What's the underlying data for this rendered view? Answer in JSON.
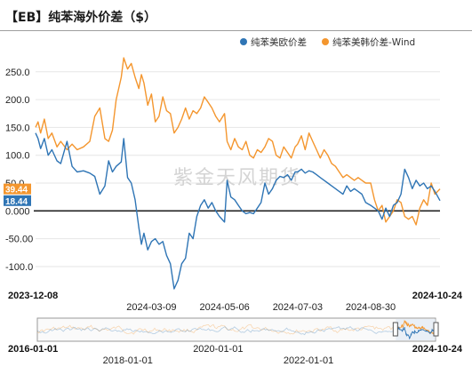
{
  "title": "【EB】纯苯海外价差（$）",
  "watermark": "紫金天风期货",
  "colors": {
    "eu": "#2f75b5",
    "kr": "#f4962e",
    "zero": "#222222",
    "grid": "#e6e6e6"
  },
  "chart_data": {
    "type": "line",
    "legend_position": "top-right",
    "ylim": [
      -140,
      280
    ],
    "yticks": [
      "250.0",
      "200.0",
      "150.0",
      "100.0",
      "50.0",
      "0.000",
      "-50.00",
      "-100.0"
    ],
    "x_start": "2023-12-08",
    "x_end": "2024-10-24",
    "x_ticks_bottom": [
      "2023-12-08",
      "2024-10-24"
    ],
    "x_ticks_top": [
      "2024-03-09",
      "2024-05-06",
      "2024-07-03",
      "2024-08-30"
    ],
    "last_values": {
      "kr": "39.44",
      "eu": "18.44"
    },
    "series": [
      {
        "name": "纯苯美欧价差",
        "key": "eu",
        "points": [
          [
            "2023-12-08",
            140
          ],
          [
            "2023-12-10",
            130
          ],
          [
            "2023-12-12",
            112
          ],
          [
            "2023-12-15",
            130
          ],
          [
            "2023-12-18",
            100
          ],
          [
            "2023-12-21",
            110
          ],
          [
            "2023-12-25",
            90
          ],
          [
            "2023-12-28",
            85
          ],
          [
            "2024-01-02",
            125
          ],
          [
            "2024-01-06",
            80
          ],
          [
            "2024-01-10",
            70
          ],
          [
            "2024-01-15",
            72
          ],
          [
            "2024-01-20",
            68
          ],
          [
            "2024-01-24",
            62
          ],
          [
            "2024-01-28",
            30
          ],
          [
            "2024-02-01",
            45
          ],
          [
            "2024-02-04",
            90
          ],
          [
            "2024-02-07",
            70
          ],
          [
            "2024-02-10",
            80
          ],
          [
            "2024-02-14",
            88
          ],
          [
            "2024-02-16",
            130
          ],
          [
            "2024-02-19",
            60
          ],
          [
            "2024-02-22",
            50
          ],
          [
            "2024-02-25",
            20
          ],
          [
            "2024-02-28",
            -30
          ],
          [
            "2024-03-01",
            -60
          ],
          [
            "2024-03-03",
            -40
          ],
          [
            "2024-03-06",
            -70
          ],
          [
            "2024-03-09",
            -55
          ],
          [
            "2024-03-12",
            -50
          ],
          [
            "2024-03-15",
            -60
          ],
          [
            "2024-03-18",
            -55
          ],
          [
            "2024-03-21",
            -80
          ],
          [
            "2024-03-24",
            -95
          ],
          [
            "2024-03-27",
            -140
          ],
          [
            "2024-03-30",
            -125
          ],
          [
            "2024-04-02",
            -95
          ],
          [
            "2024-04-05",
            -85
          ],
          [
            "2024-04-08",
            -40
          ],
          [
            "2024-04-11",
            -50
          ],
          [
            "2024-04-14",
            -10
          ],
          [
            "2024-04-17",
            10
          ],
          [
            "2024-04-20",
            20
          ],
          [
            "2024-04-23",
            5
          ],
          [
            "2024-04-26",
            15
          ],
          [
            "2024-04-29",
            0
          ],
          [
            "2024-05-02",
            -10
          ],
          [
            "2024-05-06",
            -20
          ],
          [
            "2024-05-08",
            55
          ],
          [
            "2024-05-11",
            25
          ],
          [
            "2024-05-14",
            20
          ],
          [
            "2024-05-17",
            10
          ],
          [
            "2024-05-20",
            0
          ],
          [
            "2024-05-23",
            -5
          ],
          [
            "2024-05-26",
            -3
          ],
          [
            "2024-05-29",
            -5
          ],
          [
            "2024-06-01",
            5
          ],
          [
            "2024-06-04",
            15
          ],
          [
            "2024-06-07",
            50
          ],
          [
            "2024-06-10",
            30
          ],
          [
            "2024-06-13",
            40
          ],
          [
            "2024-06-16",
            55
          ],
          [
            "2024-06-19",
            62
          ],
          [
            "2024-06-22",
            60
          ],
          [
            "2024-06-25",
            65
          ],
          [
            "2024-06-28",
            55
          ],
          [
            "2024-07-01",
            70
          ],
          [
            "2024-07-03",
            70
          ],
          [
            "2024-07-06",
            75
          ],
          [
            "2024-07-09",
            68
          ],
          [
            "2024-07-12",
            72
          ],
          [
            "2024-07-15",
            70
          ],
          [
            "2024-07-18",
            65
          ],
          [
            "2024-07-21",
            60
          ],
          [
            "2024-07-24",
            55
          ],
          [
            "2024-07-27",
            50
          ],
          [
            "2024-07-30",
            45
          ],
          [
            "2024-08-02",
            40
          ],
          [
            "2024-08-05",
            35
          ],
          [
            "2024-08-08",
            30
          ],
          [
            "2024-08-11",
            45
          ],
          [
            "2024-08-14",
            35
          ],
          [
            "2024-08-17",
            40
          ],
          [
            "2024-08-20",
            35
          ],
          [
            "2024-08-23",
            30
          ],
          [
            "2024-08-26",
            15
          ],
          [
            "2024-08-30",
            10
          ],
          [
            "2024-09-02",
            5
          ],
          [
            "2024-09-05",
            0
          ],
          [
            "2024-09-08",
            -15
          ],
          [
            "2024-09-11",
            5
          ],
          [
            "2024-09-14",
            -10
          ],
          [
            "2024-09-17",
            10
          ],
          [
            "2024-09-20",
            15
          ],
          [
            "2024-09-23",
            30
          ],
          [
            "2024-09-26",
            75
          ],
          [
            "2024-09-29",
            60
          ],
          [
            "2024-10-02",
            40
          ],
          [
            "2024-10-05",
            55
          ],
          [
            "2024-10-08",
            45
          ],
          [
            "2024-10-11",
            50
          ],
          [
            "2024-10-14",
            40
          ],
          [
            "2024-10-17",
            45
          ],
          [
            "2024-10-20",
            35
          ],
          [
            "2024-10-24",
            18.44
          ]
        ]
      },
      {
        "name": "纯苯美韩价差-Wind",
        "key": "kr",
        "points": [
          [
            "2023-12-08",
            150
          ],
          [
            "2023-12-10",
            160
          ],
          [
            "2023-12-12",
            140
          ],
          [
            "2023-12-15",
            165
          ],
          [
            "2023-12-18",
            130
          ],
          [
            "2023-12-21",
            140
          ],
          [
            "2023-12-25",
            115
          ],
          [
            "2023-12-28",
            125
          ],
          [
            "2024-01-02",
            110
          ],
          [
            "2024-01-06",
            120
          ],
          [
            "2024-01-10",
            110
          ],
          [
            "2024-01-15",
            115
          ],
          [
            "2024-01-20",
            125
          ],
          [
            "2024-01-24",
            170
          ],
          [
            "2024-01-28",
            185
          ],
          [
            "2024-02-01",
            130
          ],
          [
            "2024-02-04",
            125
          ],
          [
            "2024-02-07",
            145
          ],
          [
            "2024-02-10",
            200
          ],
          [
            "2024-02-14",
            240
          ],
          [
            "2024-02-16",
            275
          ],
          [
            "2024-02-19",
            255
          ],
          [
            "2024-02-22",
            265
          ],
          [
            "2024-02-25",
            240
          ],
          [
            "2024-02-28",
            220
          ],
          [
            "2024-03-01",
            245
          ],
          [
            "2024-03-03",
            230
          ],
          [
            "2024-03-06",
            190
          ],
          [
            "2024-03-09",
            210
          ],
          [
            "2024-03-12",
            160
          ],
          [
            "2024-03-15",
            170
          ],
          [
            "2024-03-18",
            205
          ],
          [
            "2024-03-21",
            180
          ],
          [
            "2024-03-24",
            175
          ],
          [
            "2024-03-27",
            140
          ],
          [
            "2024-03-30",
            150
          ],
          [
            "2024-04-02",
            165
          ],
          [
            "2024-04-05",
            185
          ],
          [
            "2024-04-08",
            165
          ],
          [
            "2024-04-11",
            180
          ],
          [
            "2024-04-14",
            175
          ],
          [
            "2024-04-17",
            185
          ],
          [
            "2024-04-20",
            205
          ],
          [
            "2024-04-23",
            195
          ],
          [
            "2024-04-26",
            185
          ],
          [
            "2024-04-29",
            170
          ],
          [
            "2024-05-02",
            160
          ],
          [
            "2024-05-06",
            175
          ],
          [
            "2024-05-08",
            125
          ],
          [
            "2024-05-11",
            110
          ],
          [
            "2024-05-14",
            130
          ],
          [
            "2024-05-17",
            115
          ],
          [
            "2024-05-20",
            110
          ],
          [
            "2024-05-23",
            125
          ],
          [
            "2024-05-26",
            100
          ],
          [
            "2024-05-29",
            95
          ],
          [
            "2024-06-01",
            110
          ],
          [
            "2024-06-04",
            105
          ],
          [
            "2024-06-07",
            115
          ],
          [
            "2024-06-10",
            130
          ],
          [
            "2024-06-13",
            125
          ],
          [
            "2024-06-16",
            100
          ],
          [
            "2024-06-19",
            95
          ],
          [
            "2024-06-22",
            115
          ],
          [
            "2024-06-25",
            105
          ],
          [
            "2024-06-28",
            95
          ],
          [
            "2024-07-01",
            115
          ],
          [
            "2024-07-03",
            120
          ],
          [
            "2024-07-06",
            135
          ],
          [
            "2024-07-09",
            110
          ],
          [
            "2024-07-12",
            140
          ],
          [
            "2024-07-15",
            125
          ],
          [
            "2024-07-18",
            110
          ],
          [
            "2024-07-21",
            95
          ],
          [
            "2024-07-24",
            110
          ],
          [
            "2024-07-27",
            100
          ],
          [
            "2024-07-30",
            85
          ],
          [
            "2024-08-02",
            80
          ],
          [
            "2024-08-05",
            70
          ],
          [
            "2024-08-08",
            60
          ],
          [
            "2024-08-11",
            65
          ],
          [
            "2024-08-14",
            60
          ],
          [
            "2024-08-17",
            55
          ],
          [
            "2024-08-20",
            60
          ],
          [
            "2024-08-23",
            55
          ],
          [
            "2024-08-26",
            50
          ],
          [
            "2024-08-30",
            50
          ],
          [
            "2024-09-02",
            20
          ],
          [
            "2024-09-05",
            0
          ],
          [
            "2024-09-08",
            10
          ],
          [
            "2024-09-11",
            -20
          ],
          [
            "2024-09-14",
            -10
          ],
          [
            "2024-09-17",
            0
          ],
          [
            "2024-09-20",
            20
          ],
          [
            "2024-09-23",
            15
          ],
          [
            "2024-09-26",
            -10
          ],
          [
            "2024-09-29",
            -15
          ],
          [
            "2024-10-02",
            -10
          ],
          [
            "2024-10-05",
            -25
          ],
          [
            "2024-10-08",
            5
          ],
          [
            "2024-10-11",
            20
          ],
          [
            "2024-10-14",
            10
          ],
          [
            "2024-10-17",
            50
          ],
          [
            "2024-10-20",
            30
          ],
          [
            "2024-10-24",
            39.44
          ]
        ]
      }
    ]
  },
  "navigator": {
    "x_start": "2016-01-01",
    "x_end": "2024-10-24",
    "ticks_bottom": [
      "2016-01-01",
      "2020-01-01",
      "2024-10-24"
    ],
    "ticks_top": [
      "2018-01-01",
      "2022-01-01"
    ]
  }
}
